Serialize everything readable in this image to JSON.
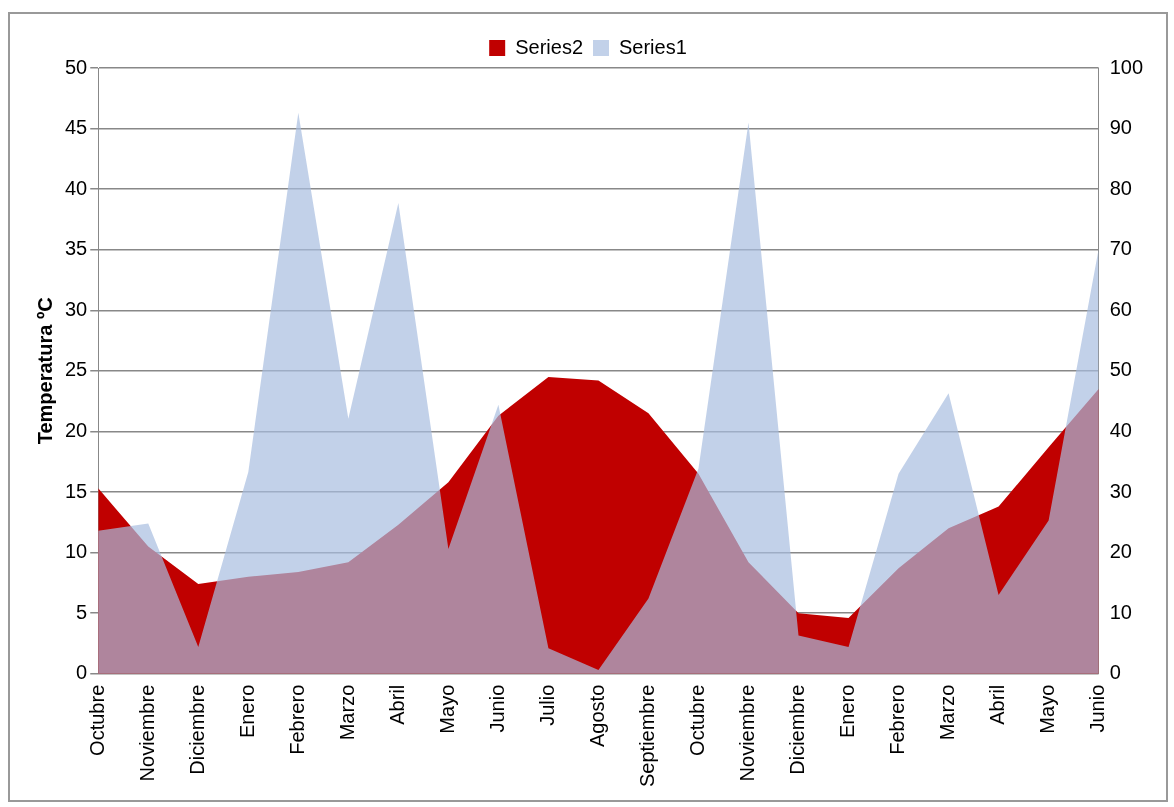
{
  "chart_data": {
    "type": "area",
    "ylabel": "Temperatura ºC",
    "categories": [
      "Octubre",
      "Noviembre",
      "Diciembre",
      "Enero",
      "Febrero",
      "Marzo",
      "Abril",
      "Mayo",
      "Junio",
      "Julio",
      "Agosto",
      "Septiembre",
      "Octubre",
      "Noviembre",
      "Diciembre",
      "Enero",
      "Febrero",
      "Marzo",
      "Abril",
      "Mayo",
      "Junio"
    ],
    "series": [
      {
        "name": "Series2",
        "color": "#c00000",
        "values": [
          15.3,
          10.5,
          7.4,
          8.0,
          8.4,
          9.2,
          12.3,
          15.8,
          21.3,
          24.5,
          24.2,
          21.5,
          16.5,
          9.2,
          5.0,
          4.6,
          8.7,
          12.0,
          13.8,
          18.7,
          23.5
        ]
      },
      {
        "name": "Series1",
        "color": "#a8bde0",
        "axis": "y2",
        "values": [
          23.6,
          24.8,
          4.4,
          33.3,
          92.6,
          42.1,
          77.7,
          20.6,
          44.4,
          4.2,
          0.6,
          12.4,
          33.9,
          91,
          6.3,
          4.4,
          33,
          46.3,
          13,
          25.3,
          70.1
        ]
      }
    ],
    "ylim": [
      0,
      50
    ],
    "yticks": [
      0,
      5,
      10,
      15,
      20,
      25,
      30,
      35,
      40,
      45,
      50
    ],
    "y2lim": [
      0,
      100
    ],
    "y2ticks": [
      0,
      10,
      20,
      30,
      40,
      50,
      60,
      70,
      80,
      90,
      100
    ],
    "grid": "y",
    "legend": "top",
    "marker": "none"
  }
}
